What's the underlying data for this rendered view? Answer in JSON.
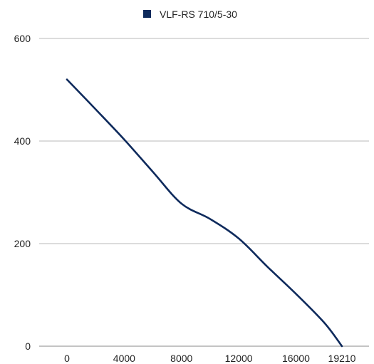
{
  "chart_data": {
    "type": "line",
    "title": "",
    "xlabel": "",
    "ylabel": "",
    "x_ticks": [
      0,
      4000,
      8000,
      12000,
      16000,
      19210
    ],
    "y_ticks": [
      0,
      200,
      400,
      600
    ],
    "ylim": [
      0,
      600
    ],
    "grid": "horizontal",
    "legend_position": "top-center",
    "series": [
      {
        "name": "VLF-RS 710/5-30",
        "color": "#0e2a5c",
        "x": [
          0,
          2000,
          4000,
          6000,
          8000,
          10000,
          12000,
          14000,
          16000,
          18000,
          19210
        ],
        "y": [
          520,
          462,
          403,
          340,
          278,
          248,
          210,
          155,
          102,
          45,
          0
        ]
      }
    ]
  }
}
